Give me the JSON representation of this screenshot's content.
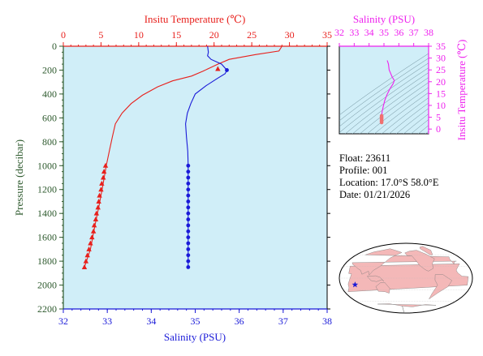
{
  "info": {
    "float": "Float:  23611",
    "profile": "Profile:  001",
    "location": "Location:  17.0°S  58.0°E",
    "date": "Date:  01/21/2026"
  },
  "colors": {
    "temperature": "#e8201c",
    "salinity": "#1a1ad8",
    "ts": "#ee22ee",
    "plot_bg": "#d0eef8",
    "axis_pressure": "#2e5a2e",
    "land": "#f4b8b8",
    "marker": "#1a1ad8"
  },
  "chart_data": [
    {
      "type": "line",
      "id": "profile",
      "x_top_label": "Insitu Temperature (℃)",
      "x_top_range": [
        0,
        35
      ],
      "x_top_ticks": [
        "0",
        "5",
        "10",
        "15",
        "20",
        "25",
        "30",
        "35"
      ],
      "x_bottom_label": "Salinity (PSU)",
      "x_bottom_range": [
        32,
        38
      ],
      "x_bottom_ticks": [
        "32",
        "33",
        "34",
        "35",
        "36",
        "37",
        "38"
      ],
      "y_label": "Pressure (decibar)",
      "y_range": [
        0,
        2200
      ],
      "y_inverted": true,
      "y_ticks": [
        "0",
        "200",
        "400",
        "600",
        "800",
        "1000",
        "1200",
        "1400",
        "1600",
        "1800",
        "2000",
        "2200"
      ],
      "series": [
        {
          "axis": "top",
          "marker": "triangle",
          "line": [
            [
              29.0,
              0
            ],
            [
              28.6,
              40
            ],
            [
              25.5,
              70
            ],
            [
              22.0,
              110
            ],
            [
              20.5,
              150
            ],
            [
              19.5,
              180
            ],
            [
              18.5,
              210
            ],
            [
              17.0,
              250
            ],
            [
              14.5,
              290
            ],
            [
              12.5,
              340
            ],
            [
              10.5,
              410
            ],
            [
              9.0,
              480
            ],
            [
              7.8,
              560
            ],
            [
              6.9,
              650
            ],
            [
              6.5,
              760
            ],
            [
              6.1,
              880
            ],
            [
              5.7,
              1000
            ],
            [
              5.2,
              1180
            ],
            [
              4.7,
              1350
            ],
            [
              4.2,
              1500
            ],
            [
              3.6,
              1700
            ],
            [
              2.8,
              1850
            ]
          ],
          "markers": [
            [
              20.5,
              190
            ],
            [
              5.6,
              1000
            ],
            [
              5.4,
              1050
            ],
            [
              5.3,
              1100
            ],
            [
              5.1,
              1150
            ],
            [
              5.0,
              1200
            ],
            [
              4.8,
              1250
            ],
            [
              4.7,
              1300
            ],
            [
              4.6,
              1350
            ],
            [
              4.4,
              1400
            ],
            [
              4.3,
              1450
            ],
            [
              4.1,
              1500
            ],
            [
              4.0,
              1550
            ],
            [
              3.8,
              1600
            ],
            [
              3.6,
              1650
            ],
            [
              3.4,
              1700
            ],
            [
              3.2,
              1750
            ],
            [
              3.0,
              1800
            ],
            [
              2.8,
              1850
            ]
          ]
        },
        {
          "axis": "bottom",
          "marker": "dot",
          "line": [
            [
              35.28,
              0
            ],
            [
              35.3,
              50
            ],
            [
              35.28,
              80
            ],
            [
              35.36,
              110
            ],
            [
              35.6,
              150
            ],
            [
              35.72,
              200
            ],
            [
              35.68,
              230
            ],
            [
              35.5,
              270
            ],
            [
              35.25,
              330
            ],
            [
              35.0,
              400
            ],
            [
              34.9,
              480
            ],
            [
              34.82,
              560
            ],
            [
              34.78,
              650
            ],
            [
              34.8,
              760
            ],
            [
              34.83,
              880
            ],
            [
              34.84,
              1000
            ],
            [
              34.84,
              1200
            ],
            [
              34.84,
              1500
            ],
            [
              34.84,
              1850
            ]
          ],
          "markers": [
            [
              35.72,
              200
            ],
            [
              34.84,
              1000
            ],
            [
              34.84,
              1050
            ],
            [
              34.84,
              1100
            ],
            [
              34.84,
              1150
            ],
            [
              34.84,
              1200
            ],
            [
              34.84,
              1250
            ],
            [
              34.84,
              1300
            ],
            [
              34.84,
              1350
            ],
            [
              34.84,
              1400
            ],
            [
              34.84,
              1450
            ],
            [
              34.84,
              1500
            ],
            [
              34.84,
              1550
            ],
            [
              34.84,
              1600
            ],
            [
              34.84,
              1650
            ],
            [
              34.84,
              1700
            ],
            [
              34.84,
              1750
            ],
            [
              34.84,
              1800
            ],
            [
              34.84,
              1850
            ]
          ]
        }
      ]
    },
    {
      "type": "line",
      "id": "ts",
      "x_label": "Salinity (PSU)",
      "x_range": [
        32,
        38
      ],
      "x_ticks": [
        "32",
        "33",
        "34",
        "35",
        "36",
        "37",
        "38"
      ],
      "y_label": "Insitu Temperature (℃)",
      "y_range": [
        -2,
        35
      ],
      "y_ticks": [
        "0",
        "5",
        "10",
        "15",
        "20",
        "25",
        "30",
        "35"
      ],
      "series": [
        {
          "values": [
            [
              35.22,
              29.0
            ],
            [
              35.3,
              27.5
            ],
            [
              35.35,
              25.0
            ],
            [
              35.55,
              22.0
            ],
            [
              35.7,
              20.5
            ],
            [
              35.6,
              19.0
            ],
            [
              35.4,
              17.0
            ],
            [
              35.2,
              14.5
            ],
            [
              35.05,
              12.0
            ],
            [
              34.95,
              9.5
            ],
            [
              34.88,
              7.5
            ],
            [
              34.84,
              5.6
            ],
            [
              34.84,
              2.8
            ]
          ],
          "thick": [
            [
              34.84,
              5.6
            ],
            [
              34.84,
              2.8
            ]
          ]
        }
      ]
    }
  ],
  "map": {
    "marker_lon": 58.0,
    "marker_lat": -17.0
  }
}
